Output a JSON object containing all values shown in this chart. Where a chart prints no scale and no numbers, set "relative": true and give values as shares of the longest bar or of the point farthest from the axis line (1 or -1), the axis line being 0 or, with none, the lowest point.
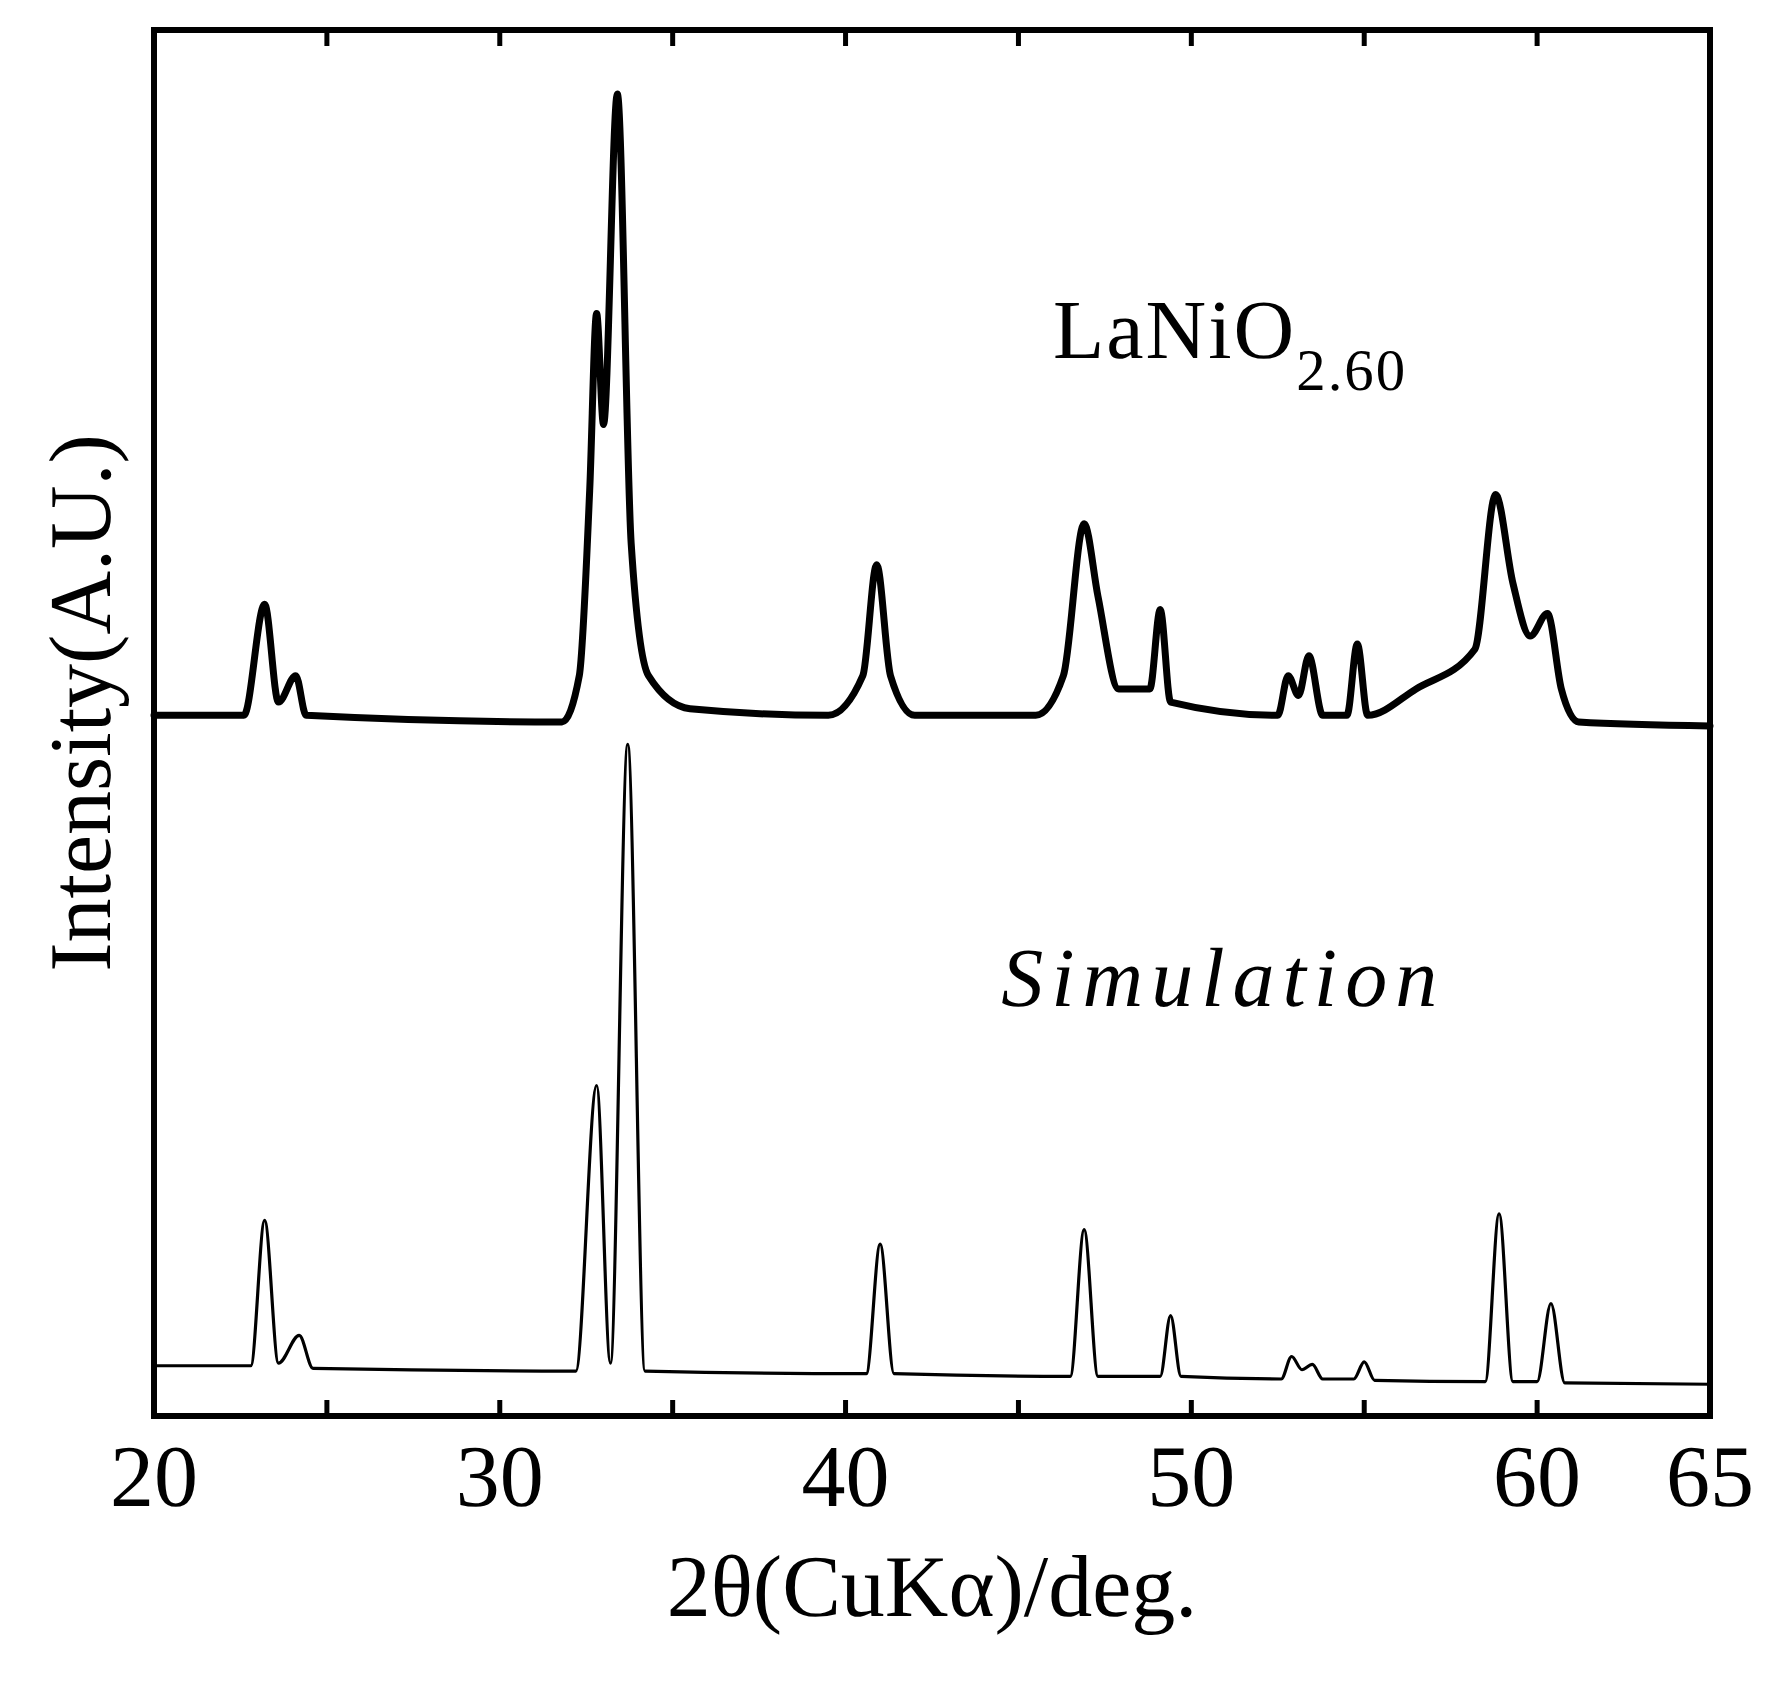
{
  "chart_data": {
    "type": "line",
    "relative": true,
    "xlabel": "2θ(CuKα)/deg.",
    "ylabel": "Intensity(A.U.)",
    "xlim": [
      20,
      65
    ],
    "xticks": [
      20,
      {
        "value": 25,
        "label": null
      },
      30,
      {
        "value": 35,
        "label": null
      },
      40,
      {
        "value": 45,
        "label": null
      },
      50,
      {
        "value": 55,
        "label": null
      },
      60,
      65
    ],
    "grid": false,
    "line_style": "solid",
    "series": [
      {
        "name": "LaNiO$_{2.60}$",
        "color": "#000000",
        "x": [
          20,
          22.6,
          23.2,
          23.6,
          24.1,
          24.4,
          31.8,
          32.3,
          32.6,
          32.8,
          33.0,
          33.4,
          33.8,
          34.3,
          35.5,
          39.5,
          40.5,
          40.9,
          41.3,
          42.0,
          45.5,
          46.3,
          46.9,
          47.3,
          47.9,
          48.8,
          49.1,
          49.4,
          52.5,
          52.8,
          53.1,
          53.4,
          53.8,
          54.5,
          54.8,
          55.1,
          56.5,
          58.2,
          58.8,
          59.3,
          59.8,
          60.3,
          60.7,
          61.2,
          65
        ],
        "values": [
          0.53,
          0.53,
          0.614,
          0.54,
          0.56,
          0.53,
          0.525,
          0.56,
          0.7,
          0.834,
          0.75,
          1.0,
          0.66,
          0.56,
          0.535,
          0.53,
          0.56,
          0.644,
          0.56,
          0.53,
          0.53,
          0.56,
          0.675,
          0.62,
          0.55,
          0.55,
          0.61,
          0.54,
          0.53,
          0.56,
          0.545,
          0.575,
          0.53,
          0.53,
          0.584,
          0.53,
          0.55,
          0.58,
          0.697,
          0.63,
          0.59,
          0.607,
          0.55,
          0.525,
          0.522
        ]
      },
      {
        "name": "Simulation",
        "color": "#000000",
        "x": [
          20,
          22.8,
          23.2,
          23.6,
          24.2,
          24.6,
          32.2,
          32.8,
          33.2,
          33.7,
          34.2,
          40.6,
          41.0,
          41.4,
          46.5,
          46.9,
          47.3,
          49.1,
          49.4,
          49.7,
          52.6,
          52.9,
          53.2,
          53.5,
          53.8,
          54.7,
          55.0,
          55.3,
          58.5,
          58.9,
          59.3,
          60.0,
          60.4,
          60.8,
          65
        ],
        "values": [
          0.038,
          0.038,
          0.148,
          0.04,
          0.061,
          0.036,
          0.034,
          0.25,
          0.04,
          0.508,
          0.034,
          0.032,
          0.13,
          0.032,
          0.03,
          0.141,
          0.03,
          0.03,
          0.076,
          0.03,
          0.028,
          0.045,
          0.035,
          0.039,
          0.028,
          0.028,
          0.041,
          0.027,
          0.026,
          0.153,
          0.026,
          0.026,
          0.085,
          0.025,
          0.024
        ]
      }
    ]
  }
}
